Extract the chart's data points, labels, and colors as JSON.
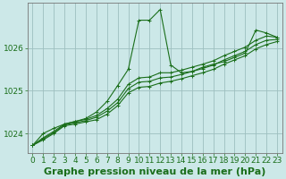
{
  "bg_color": "#cce8e8",
  "grid_color": "#9dbfbf",
  "line_color": "#1a6e1a",
  "title": "Graphe pression niveau de la mer (hPa)",
  "xlim": [
    -0.5,
    23.5
  ],
  "ylim": [
    1023.55,
    1027.05
  ],
  "yticks": [
    1024,
    1025,
    1026
  ],
  "xticks": [
    0,
    1,
    2,
    3,
    4,
    5,
    6,
    7,
    8,
    9,
    10,
    11,
    12,
    13,
    14,
    15,
    16,
    17,
    18,
    19,
    20,
    21,
    22,
    23
  ],
  "series": [
    [
      1023.72,
      1023.85,
      1024.0,
      1024.18,
      1024.22,
      1024.27,
      1024.32,
      1024.45,
      1024.65,
      1024.95,
      1025.08,
      1025.1,
      1025.18,
      1025.22,
      1025.28,
      1025.35,
      1025.42,
      1025.5,
      1025.62,
      1025.72,
      1025.82,
      1025.98,
      1026.08,
      1026.15
    ],
    [
      1023.72,
      1023.88,
      1024.02,
      1024.2,
      1024.25,
      1024.3,
      1024.38,
      1024.52,
      1024.72,
      1025.05,
      1025.2,
      1025.22,
      1025.3,
      1025.32,
      1025.38,
      1025.45,
      1025.52,
      1025.6,
      1025.72,
      1025.82,
      1025.92,
      1026.08,
      1026.18,
      1026.2
    ],
    [
      1023.72,
      1023.9,
      1024.05,
      1024.22,
      1024.28,
      1024.33,
      1024.42,
      1024.58,
      1024.8,
      1025.15,
      1025.3,
      1025.32,
      1025.42,
      1025.42,
      1025.48,
      1025.55,
      1025.62,
      1025.7,
      1025.82,
      1025.92,
      1026.02,
      1026.18,
      1026.28,
      1026.25
    ],
    [
      1023.72,
      1024.0,
      1024.12,
      1024.22,
      1024.28,
      1024.35,
      1024.5,
      1024.75,
      1025.12,
      1025.5,
      1026.65,
      1026.65,
      1026.9,
      1025.6,
      1025.42,
      1025.45,
      1025.55,
      1025.62,
      1025.68,
      1025.78,
      1025.88,
      1026.42,
      1026.35,
      1026.25
    ]
  ],
  "title_fontsize": 8,
  "tick_fontsize": 6.5,
  "title_color": "#1a6e1a",
  "tick_color": "#1a6e1a",
  "figwidth": 3.2,
  "figheight": 2.0,
  "dpi": 100
}
